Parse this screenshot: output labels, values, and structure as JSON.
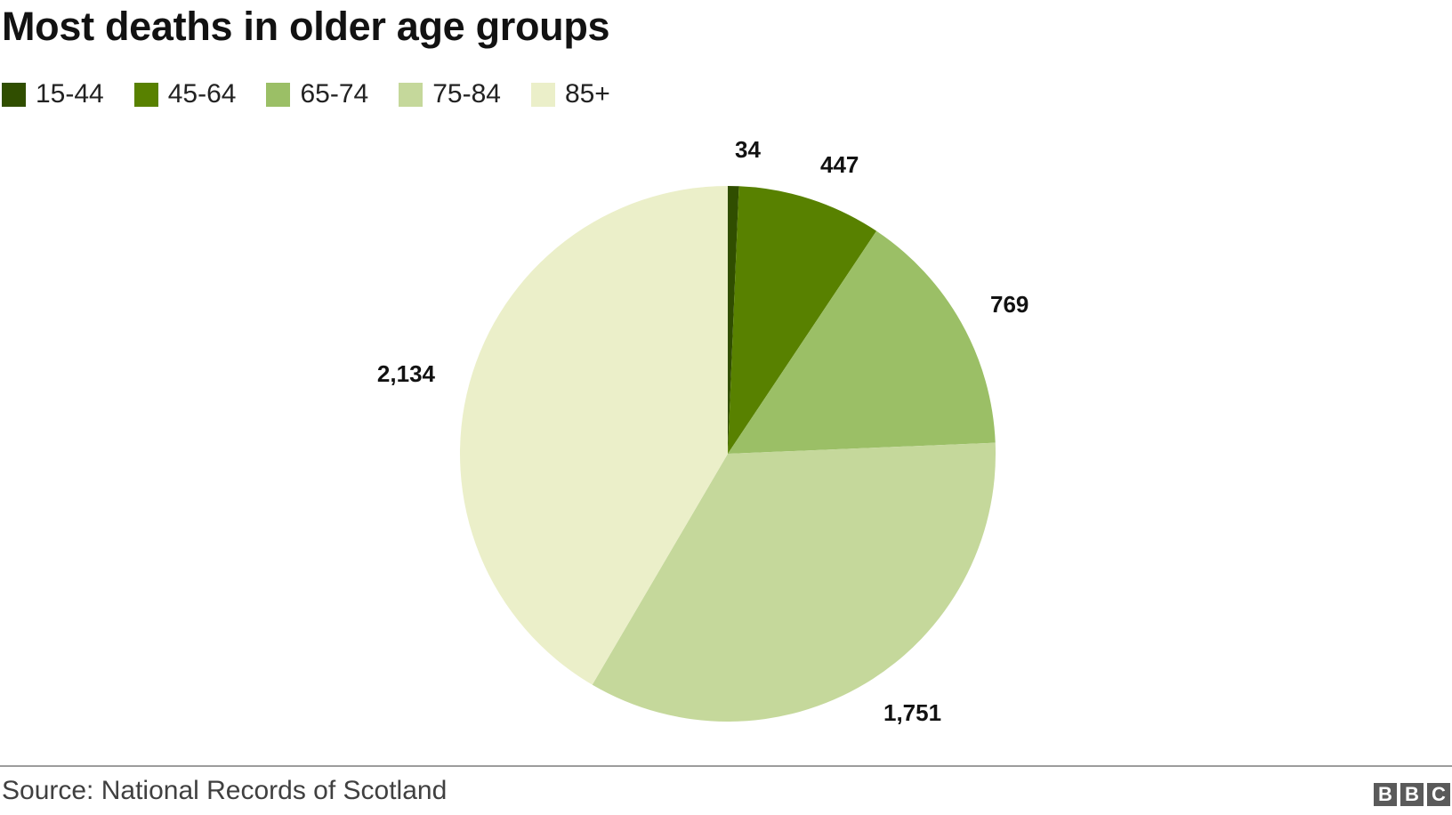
{
  "title": "Most deaths in older age groups",
  "source": "Source: National Records of Scotland",
  "logo": {
    "letters": [
      "B",
      "B",
      "C"
    ],
    "color": "#5a5a5a"
  },
  "chart_data": {
    "type": "pie",
    "title": "Most deaths in older age groups",
    "legend_position": "top-left",
    "start": "12 o'clock",
    "direction": "clockwise",
    "slices": [
      {
        "name": "15-44",
        "value": 34,
        "label": "34",
        "color": "#304e00"
      },
      {
        "name": "45-64",
        "value": 447,
        "label": "447",
        "color": "#588100"
      },
      {
        "name": "65-74",
        "value": 769,
        "label": "769",
        "color": "#9bbf66"
      },
      {
        "name": "75-84",
        "value": 1751,
        "label": "1,751",
        "color": "#c5d89b"
      },
      {
        "name": "85+",
        "value": 2134,
        "label": "2,134",
        "color": "#ebefc9"
      }
    ]
  }
}
